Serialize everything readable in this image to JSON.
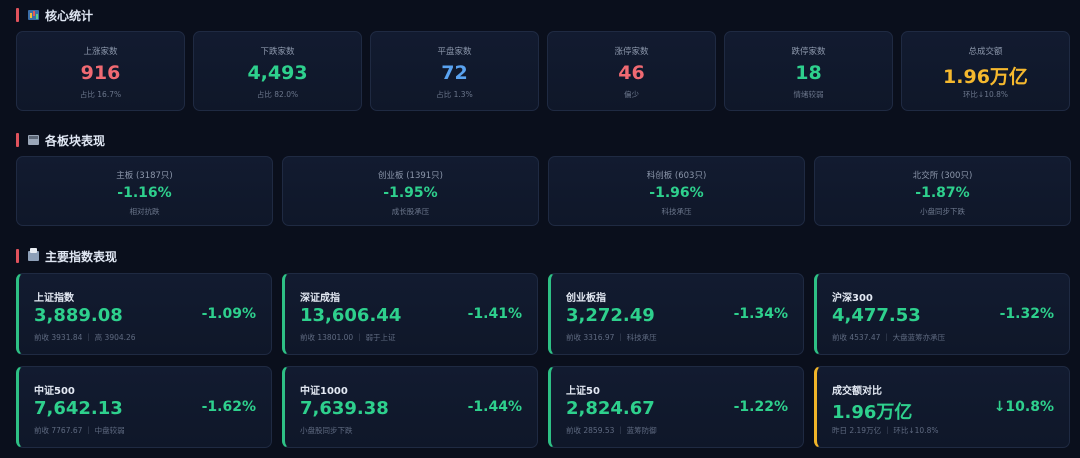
{
  "sections": {
    "core": "核心统计",
    "boards": "各板块表现",
    "indices": "主要指数表现"
  },
  "stats": [
    {
      "label": "上涨家数",
      "value": "916",
      "sub": "占比 16.7%",
      "color": "#f06a72"
    },
    {
      "label": "下跌家数",
      "value": "4,493",
      "sub": "占比 82.0%",
      "color": "#2ed08d"
    },
    {
      "label": "平盘家数",
      "value": "72",
      "sub": "占比 1.3%",
      "color": "#5aa3f0"
    },
    {
      "label": "涨停家数",
      "value": "46",
      "sub": "偏少",
      "color": "#f06a72"
    },
    {
      "label": "跌停家数",
      "value": "18",
      "sub": "情绪较弱",
      "color": "#2ed08d"
    },
    {
      "label": "总成交额",
      "value": "1.96万亿",
      "sub": "环比↓10.8%",
      "color": "#f5b82e"
    }
  ],
  "boards": [
    {
      "label": "主板 (3187只)",
      "value": "-1.16%",
      "sub": "相对抗跌"
    },
    {
      "label": "创业板 (1391只)",
      "value": "-1.95%",
      "sub": "成长股承压"
    },
    {
      "label": "科创板 (603只)",
      "value": "-1.96%",
      "sub": "科技承压"
    },
    {
      "label": "北交所 (300只)",
      "value": "-1.87%",
      "sub": "小盘同步下跌"
    }
  ],
  "indices": [
    {
      "name": "上证指数",
      "value": "3,889.08",
      "change": "-1.09%",
      "meta": "前收 3931.84 ｜ 高 3904.26"
    },
    {
      "name": "深证成指",
      "value": "13,606.44",
      "change": "-1.41%",
      "meta": "前收 13801.00 ｜ 弱于上证"
    },
    {
      "name": "创业板指",
      "value": "3,272.49",
      "change": "-1.34%",
      "meta": "前收 3316.97 ｜ 科技承压"
    },
    {
      "name": "沪深300",
      "value": "4,477.53",
      "change": "-1.32%",
      "meta": "前收 4537.47 ｜ 大盘蓝筹亦承压"
    },
    {
      "name": "中证500",
      "value": "7,642.13",
      "change": "-1.62%",
      "meta": "前收 7767.67 ｜ 中盘较弱"
    },
    {
      "name": "中证1000",
      "value": "7,639.38",
      "change": "-1.44%",
      "meta": "小盘股同步下跌"
    },
    {
      "name": "上证50",
      "value": "2,824.67",
      "change": "-1.22%",
      "meta": "前收 2859.53 ｜ 蓝筹防御"
    },
    {
      "name": "成交额对比",
      "value": "1.96万亿",
      "change": "↓10.8%",
      "meta": "昨日 2.19万亿 ｜ 环比↓10.8%",
      "highlight": true
    }
  ],
  "colors": {
    "up": "#f06a72",
    "down": "#2ed08d",
    "flat": "#5aa3f0",
    "accent": "#f5b82e",
    "background": "#0a0f1c"
  },
  "icons": {
    "core": "bar-chart-icon",
    "boards": "package-icon",
    "indices": "inbox-tray-icon"
  }
}
